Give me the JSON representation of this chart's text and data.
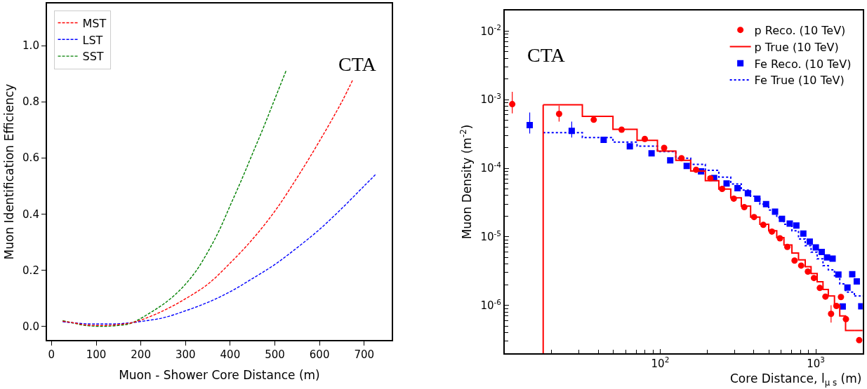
{
  "chart_data": [
    {
      "type": "line",
      "xlabel": "Muon - Shower Core Distance (m)",
      "ylabel": "Muon Identification Efficiency",
      "annotations": [
        "CTA"
      ],
      "xlim": [
        -10.5,
        762
      ],
      "ylim": [
        -0.049,
        1.15
      ],
      "xticks": [
        0,
        100,
        200,
        300,
        400,
        500,
        600,
        700
      ],
      "yticks": [
        {
          "value": 0,
          "label": "0.0"
        },
        {
          "value": 0.2,
          "label": "0.2"
        },
        {
          "value": 0.4,
          "label": "0.4"
        },
        {
          "value": 0.6,
          "label": "0.6"
        },
        {
          "value": 0.8,
          "label": "0.8"
        },
        {
          "value": 1.0,
          "label": "1.0"
        }
      ],
      "legend": "top left",
      "line_style": "dashed",
      "marker": "none",
      "series": [
        {
          "name": "MST",
          "color": "#ff0000",
          "x": [
            25,
            50,
            75,
            100,
            125,
            150,
            175,
            200,
            250,
            300,
            350,
            400,
            450,
            500,
            550,
            600,
            650,
            675
          ],
          "values": [
            0.018,
            0.012,
            0.005,
            0.003,
            0.003,
            0.006,
            0.011,
            0.022,
            0.055,
            0.098,
            0.15,
            0.225,
            0.31,
            0.41,
            0.53,
            0.66,
            0.8,
            0.88
          ]
        },
        {
          "name": "LST",
          "color": "#0000ff",
          "x": [
            25,
            50,
            75,
            100,
            125,
            150,
            175,
            200,
            250,
            300,
            350,
            400,
            450,
            500,
            550,
            600,
            650,
            700,
            725
          ],
          "values": [
            0.016,
            0.012,
            0.009,
            0.008,
            0.008,
            0.009,
            0.012,
            0.017,
            0.03,
            0.055,
            0.085,
            0.123,
            0.17,
            0.22,
            0.28,
            0.345,
            0.42,
            0.5,
            0.54
          ]
        },
        {
          "name": "SST",
          "color": "#008000",
          "x": [
            25,
            50,
            75,
            100,
            125,
            150,
            175,
            200,
            225,
            250,
            275,
            300,
            325,
            350,
            375,
            400,
            425,
            450,
            475,
            500,
            525
          ],
          "values": [
            0.02,
            0.011,
            0.003,
            0.0,
            0.0,
            0.003,
            0.009,
            0.028,
            0.052,
            0.078,
            0.11,
            0.15,
            0.2,
            0.265,
            0.34,
            0.43,
            0.52,
            0.615,
            0.71,
            0.81,
            0.91
          ]
        }
      ]
    },
    {
      "type": "scatter",
      "xlabel": "Core Distance, l$_{μ s}$ (m)",
      "ylabel": "Muon Density (m$^{-2}$)",
      "annotations": [
        "CTA"
      ],
      "log": "xy",
      "xlim": [
        10,
        2000
      ],
      "ylim": [
        2e-07,
        0.02
      ],
      "xticks": [
        {
          "value": 100,
          "label": "10$^{2}$"
        },
        {
          "value": 1000,
          "label": "10$^{3}$"
        }
      ],
      "yticks": [
        {
          "value": 1e-06,
          "label": "10$^{-6}$"
        },
        {
          "value": 1e-05,
          "label": "10$^{-5}$"
        },
        {
          "value": 0.0001,
          "label": "10$^{-4}$"
        },
        {
          "value": 0.001,
          "label": "10$^{-3}$"
        },
        {
          "value": 0.01,
          "label": "10$^{-2}$"
        }
      ],
      "legend": "top right",
      "ref_lines": [
        {
          "axis": "x",
          "value": 17.7,
          "color": "#ff0000"
        }
      ],
      "series": [
        {
          "name": "p Reco. (10 TeV)",
          "type": "scatter",
          "marker": "circle",
          "color": "#ff0000",
          "x": [
            11.2,
            22.4,
            37.4,
            56.5,
            79.6,
            106,
            137,
            170,
            210,
            250,
            297,
            347,
            401,
            460,
            522,
            588,
            656,
            730,
            805,
            889,
            973,
            1061,
            1153,
            1253,
            1356,
            1450,
            1561,
            1900
          ],
          "values": [
            0.00086,
            0.00062,
            0.00051,
            0.000365,
            0.000267,
            0.000198,
            0.00014,
            9.5e-05,
            7.1e-05,
            5e-05,
            3.6e-05,
            2.7e-05,
            1.94e-05,
            1.49e-05,
            1.19e-05,
            9.5e-06,
            7.1e-06,
            4.5e-06,
            3.8e-06,
            3.1e-06,
            2.5e-06,
            1.79e-06,
            1.34e-06,
            7.5e-07,
            9.8e-07,
            1.32e-06,
            6.3e-07,
            3.1e-07
          ],
          "errors": [
            [
              0.00063,
              0.0013
            ],
            [
              0.00048,
              0.00082
            ],
            null,
            null,
            null,
            null,
            null,
            null,
            null,
            null,
            null,
            null,
            null,
            null,
            null,
            null,
            null,
            null,
            null,
            null,
            null,
            null,
            null,
            [
              5.6e-07,
              1e-06
            ],
            null,
            null,
            null,
            null
          ]
        },
        {
          "name": "p True (10 TeV)",
          "type": "step",
          "line_style": "solid",
          "color": "#ff0000",
          "x": [
            17.7,
            31.6,
            49.7,
            71,
            96,
            126,
            157,
            195,
            238,
            284,
            332,
            381,
            437,
            498,
            561,
            624,
            702,
            774,
            855,
            932,
            1020,
            1112,
            1203,
            1318,
            1425,
            1553,
            1770
          ],
          "values": [
            0.00084,
            0.00057,
            0.00037,
            0.000255,
            0.000178,
            0.00013,
            9.1e-05,
            6.6e-05,
            4.95e-05,
            3.7e-05,
            2.8e-05,
            1.94e-05,
            1.52e-05,
            1.22e-05,
            9.7e-06,
            7.6e-06,
            5.8e-06,
            4.6e-06,
            3.65e-06,
            2.9e-06,
            2.2e-06,
            1.7e-06,
            1.37e-06,
            1e-06,
            7e-07,
            4.3e-07,
            4.3e-07
          ]
        },
        {
          "name": "Fe Reco. (10 TeV)",
          "type": "scatter",
          "marker": "square",
          "color": "#0000ff",
          "x": [
            14.5,
            27,
            43.3,
            63.8,
            88,
            116,
            148,
            183,
            222,
            267,
            314,
            366,
            421,
            479,
            547,
            606,
            680,
            750,
            831,
            914,
            1000,
            1091,
            1181,
            1282,
            1397,
            1489,
            1597,
            1714,
            1833,
            1959
          ],
          "values": [
            0.000426,
            0.00035,
            0.00026,
            0.000209,
            0.000165,
            0.00013,
            0.000108,
            9e-05,
            7.2e-05,
            6e-05,
            5.1e-05,
            4.3e-05,
            3.6e-05,
            3e-05,
            2.33e-05,
            1.82e-05,
            1.56e-05,
            1.46e-05,
            1.11e-05,
            8.5e-06,
            7e-06,
            6e-06,
            5e-06,
            4.8e-06,
            2.8e-06,
            9.6e-07,
            1.82e-06,
            2.84e-06,
            2.23e-06,
            9.7e-07
          ],
          "errors": [
            [
              0.00032,
              0.00065
            ],
            [
              0.00028,
              0.00048
            ],
            null,
            null,
            null,
            null,
            null,
            null,
            null,
            null,
            null,
            null,
            null,
            null,
            null,
            null,
            null,
            null,
            null,
            null,
            null,
            null,
            null,
            null,
            null,
            null,
            null,
            null,
            null,
            null
          ]
        },
        {
          "name": "Fe True (10 TeV)",
          "type": "step",
          "line_style": "dotted",
          "color": "#0000ff",
          "x": [
            17.7,
            31.6,
            49.7,
            71,
            96,
            126,
            157,
            195,
            238,
            284,
            332,
            381,
            437,
            498,
            561,
            624,
            702,
            774,
            855,
            932,
            1020,
            1112,
            1203,
            1318,
            1425,
            1553,
            1770
          ],
          "values": [
            0.00033,
            0.00028,
            0.00024,
            0.00021,
            0.000175,
            0.00014,
            0.000114,
            9.3e-05,
            7.4e-05,
            5.9e-05,
            4.8e-05,
            3.9e-05,
            3e-05,
            2.45e-05,
            1.9e-05,
            1.52e-05,
            1.22e-05,
            9.3e-06,
            7.4e-06,
            5.95e-06,
            4.77e-06,
            3.8e-06,
            3.3e-06,
            2.7e-06,
            2.05e-06,
            1.56e-06,
            1.37e-06
          ]
        }
      ]
    }
  ]
}
